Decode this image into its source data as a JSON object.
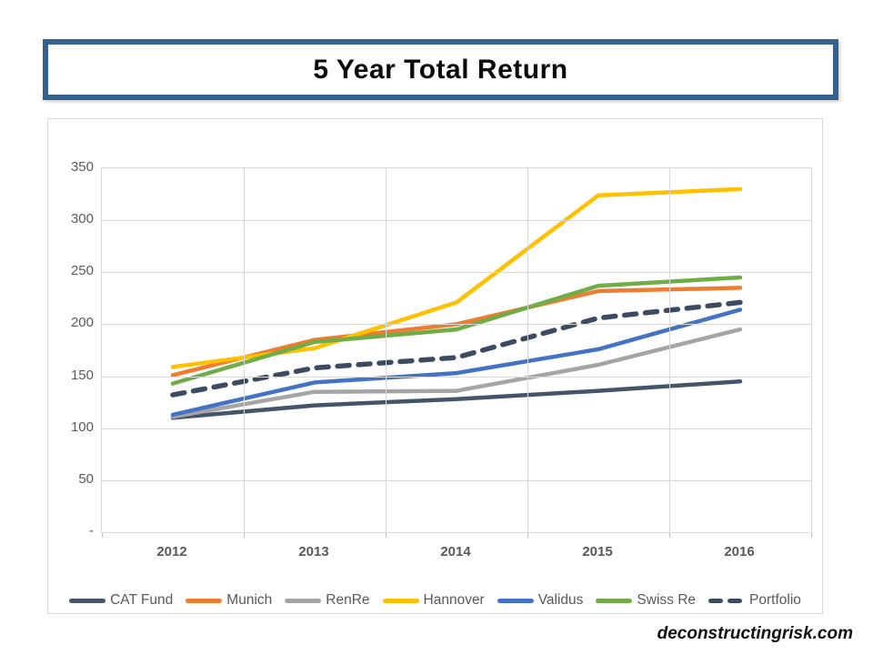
{
  "title": "5 Year Total Return",
  "watermark": "deconstructingrisk.com",
  "colors": {
    "title_border": "#35618E",
    "axis_text": "#595959",
    "gridline": "#D9D9D9",
    "container_border": "#D8D8D8"
  },
  "chart_data": {
    "type": "line",
    "title": "5 Year Total Return",
    "categories": [
      "2012",
      "2013",
      "2014",
      "2015",
      "2016"
    ],
    "xlabel": "",
    "ylabel": "",
    "ylim": [
      0,
      350
    ],
    "grid": true,
    "legend_position": "bottom",
    "yticks": [
      {
        "v": 350,
        "label": "350"
      },
      {
        "v": 300,
        "label": "300"
      },
      {
        "v": 250,
        "label": "250"
      },
      {
        "v": 200,
        "label": "200"
      },
      {
        "v": 150,
        "label": "150"
      },
      {
        "v": 100,
        "label": "100"
      },
      {
        "v": 50,
        "label": "50"
      },
      {
        "v": 0,
        "label": "-"
      }
    ],
    "series": [
      {
        "name": "CAT Fund",
        "color": "#44546A",
        "dashed": false,
        "values": [
          110,
          122,
          128,
          136,
          145
        ]
      },
      {
        "name": "Munich",
        "color": "#ED7D31",
        "dashed": false,
        "values": [
          151,
          185,
          200,
          232,
          235
        ]
      },
      {
        "name": "RenRe",
        "color": "#A5A5A5",
        "dashed": false,
        "values": [
          111,
          135,
          136,
          161,
          195
        ]
      },
      {
        "name": "Hannover",
        "color": "#FFC000",
        "dashed": false,
        "values": [
          159,
          177,
          221,
          324,
          330
        ]
      },
      {
        "name": "Validus",
        "color": "#4472C4",
        "dashed": false,
        "values": [
          113,
          144,
          153,
          176,
          214
        ]
      },
      {
        "name": "Swiss Re",
        "color": "#70AD47",
        "dashed": false,
        "values": [
          143,
          183,
          195,
          237,
          245
        ]
      },
      {
        "name": "Portfolio",
        "color": "#3C4B61",
        "dashed": true,
        "values": [
          132,
          158,
          168,
          206,
          221
        ]
      }
    ]
  }
}
